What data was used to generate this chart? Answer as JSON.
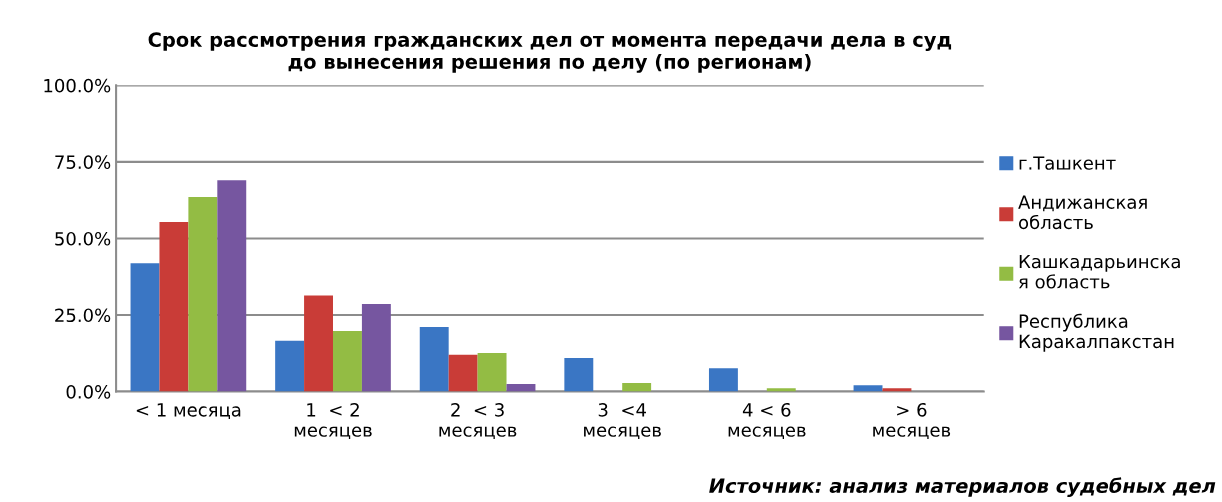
{
  "chart_data": {
    "type": "bar",
    "title": "Срок рассмотрения гражданских дел от момента передачи дела в суд\nдо вынесения решения по делу (по регионам)",
    "categories": [
      "< 1 месяца",
      "1  < 2\nмесяцев",
      "2  < 3\nмесяцев",
      "3  <4\nмесяцев",
      "4 < 6\nмесяцев",
      "> 6\nмесяцев"
    ],
    "series": [
      {
        "name": "г.Ташкент",
        "color": "#3a76c4",
        "values": [
          41.9,
          16.6,
          21.1,
          11.0,
          7.6,
          2.1
        ]
      },
      {
        "name": "Андижанская\nобласть",
        "color": "#c93c37",
        "values": [
          55.4,
          31.4,
          12.0,
          0,
          0,
          1.1
        ]
      },
      {
        "name": "Кашкадарьинска\nя область",
        "color": "#93bc44",
        "values": [
          63.5,
          19.8,
          12.6,
          2.8,
          1.1,
          0
        ]
      },
      {
        "name": "Республика\nКаракалпакстан",
        "color": "#7656a0",
        "values": [
          69.0,
          28.6,
          2.5,
          0,
          0,
          0
        ]
      }
    ],
    "ylim": [
      0,
      100
    ],
    "yticks": [
      {
        "value": 0,
        "label": "0.0%"
      },
      {
        "value": 25,
        "label": "25.0%"
      },
      {
        "value": 50,
        "label": "50.0%"
      },
      {
        "value": 75,
        "label": "75.0%"
      },
      {
        "value": 100,
        "label": "100.0%"
      }
    ],
    "grid": "y",
    "legend": "right",
    "annotations": [
      "Источник: анализ материалов судебных дел"
    ]
  }
}
